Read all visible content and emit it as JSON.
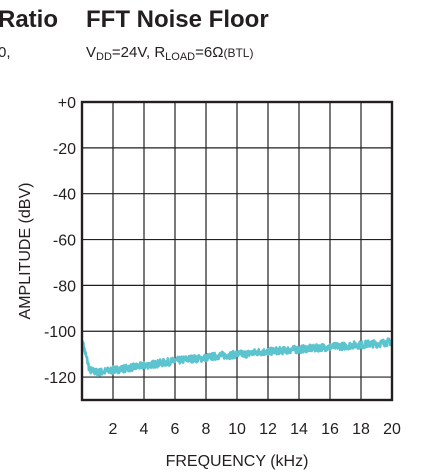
{
  "left_clip": {
    "title": "Ratio",
    "sub": "0,"
  },
  "header": {
    "title": "FFT Noise Floor",
    "cond1_prefix": "V",
    "cond1_sub": "DD",
    "cond1_suffix": "=24V, R",
    "cond2_sub": "LOAD",
    "cond2_suffix": "=6Ω",
    "cond3": "(BTL)"
  },
  "chart_data": {
    "type": "line",
    "title": "FFT Noise Floor",
    "xlabel": "FREQUENCY (kHz)",
    "ylabel": "AMPLITUDE (dBV)",
    "xlim": [
      0,
      20
    ],
    "ylim": [
      -130,
      0
    ],
    "x_ticks": [
      "2",
      "4",
      "6",
      "8",
      "10",
      "12",
      "14",
      "16",
      "18",
      "20"
    ],
    "y_ticks": [
      "+0",
      "-20",
      "-40",
      "-60",
      "-80",
      "-100",
      "-120"
    ],
    "grid": true,
    "line_color": "#5bc4cf",
    "series": [
      {
        "x": [
          0,
          0.5,
          1,
          1.5,
          2,
          2.5,
          3,
          3.5,
          4,
          4.5,
          5,
          5.5,
          6,
          6.5,
          7,
          7.5,
          8,
          8.5,
          9,
          9.5,
          10,
          10.5,
          11,
          11.5,
          12,
          12.5,
          13,
          13.5,
          14,
          14.5,
          15,
          15.5,
          16,
          16.5,
          17,
          17.5,
          18,
          18.5,
          19,
          19.5,
          20
        ],
        "values": [
          -104,
          -117,
          -118,
          -117.5,
          -117,
          -116.5,
          -116,
          -115.5,
          -115,
          -114.5,
          -114,
          -113.5,
          -113,
          -112.5,
          -112,
          -112,
          -111.5,
          -111,
          -110.5,
          -110.5,
          -110,
          -110,
          -109.5,
          -109,
          -109,
          -108.5,
          -108.5,
          -108,
          -108,
          -107.5,
          -107.5,
          -107,
          -107,
          -106.5,
          -106.5,
          -106,
          -106,
          -105.5,
          -105.5,
          -105,
          -104.5
        ]
      }
    ]
  }
}
